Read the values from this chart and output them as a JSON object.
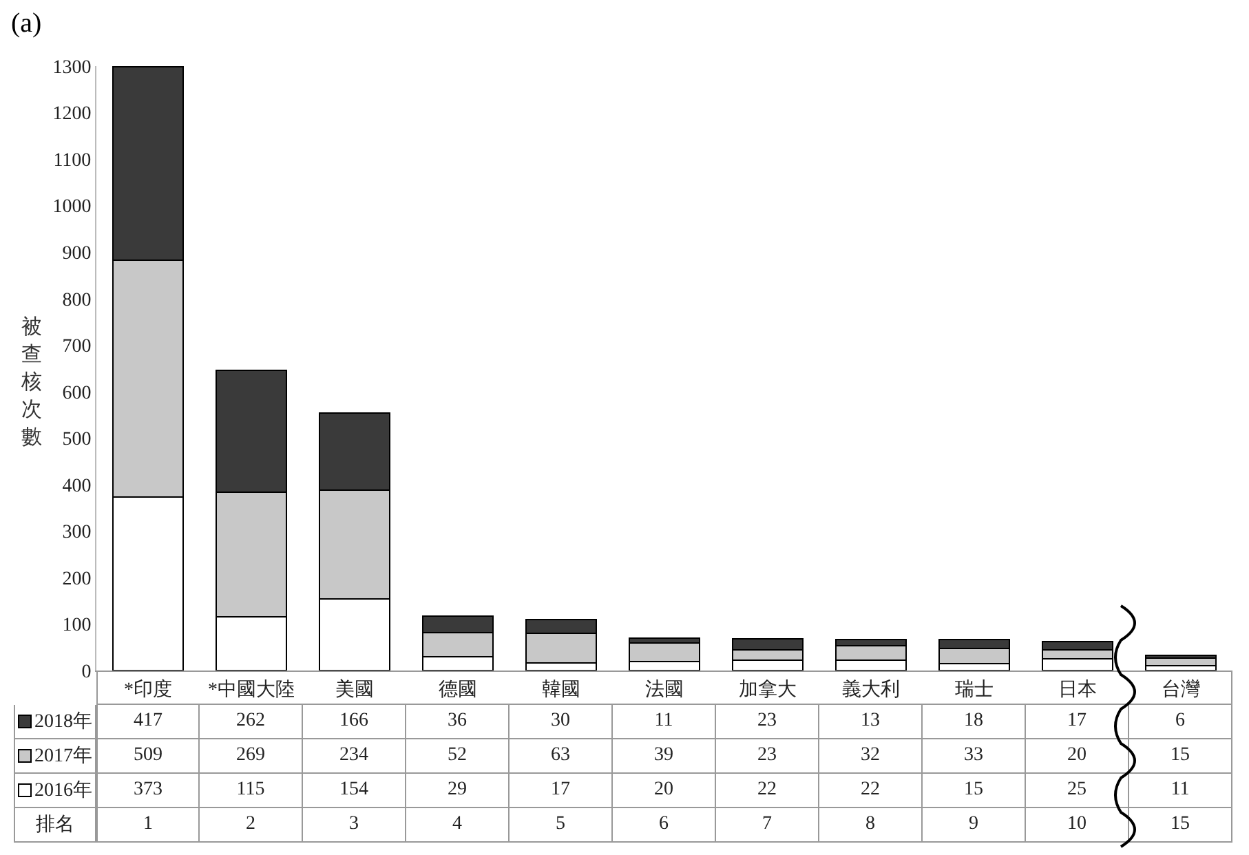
{
  "chart_data": {
    "type": "bar",
    "title": "(a)",
    "ylabel": "被查核次數",
    "stacked": true,
    "data_labels": true,
    "legend": "bottom left",
    "categories": [
      "*印度",
      "*中國大陸",
      "美國",
      "德國",
      "韓國",
      "法國",
      "加拿大",
      "義大利",
      "瑞士",
      "日本",
      "台灣"
    ],
    "series": [
      {
        "name": "2016年",
        "color": "#ffffff",
        "values": [
          373,
          115,
          154,
          29,
          17,
          20,
          22,
          22,
          15,
          25,
          11
        ]
      },
      {
        "name": "2017年",
        "color": "#c8c8c8",
        "values": [
          509,
          269,
          234,
          52,
          63,
          39,
          23,
          32,
          33,
          20,
          15
        ]
      },
      {
        "name": "2018年",
        "color": "#3a3a3a",
        "values": [
          417,
          262,
          166,
          36,
          30,
          11,
          23,
          13,
          18,
          17,
          6
        ]
      }
    ],
    "ylim": [
      0,
      1300
    ],
    "yticks": [
      0,
      100,
      200,
      300,
      400,
      500,
      600,
      700,
      800,
      900,
      1000,
      1100,
      1200,
      1300
    ],
    "annotations": [
      "排名",
      "1",
      "2",
      "3",
      "4",
      "5",
      "6",
      "7",
      "8",
      "9",
      "10",
      "15"
    ]
  }
}
